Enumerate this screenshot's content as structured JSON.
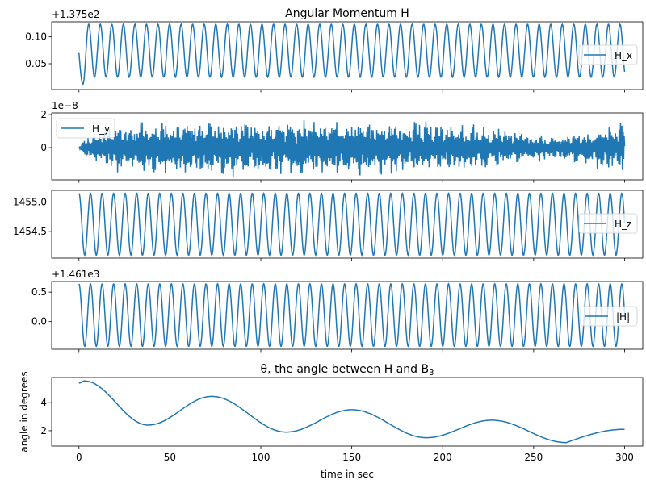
{
  "chart_data": [
    {
      "type": "line",
      "title": "Angular Momentum H",
      "offset_label": "+1.375e2",
      "legend": "H_x",
      "legend_placement": "center-right",
      "yticks": [
        0.05,
        0.1
      ],
      "ytick_labels": [
        "0.05",
        "0.10"
      ],
      "ylim": [
        0.002,
        0.128
      ],
      "xlim": [
        -15,
        310
      ],
      "series": {
        "start": 0.07,
        "first_min": 0.012,
        "min": 0.025,
        "max": 0.1235,
        "period_s": 6.35,
        "t_end": 300
      }
    },
    {
      "type": "line",
      "offset_label": "1e−8",
      "legend": "H_y",
      "legend_placement": "upper-left",
      "yticks": [
        0,
        2
      ],
      "ytick_labels": [
        "0",
        "2"
      ],
      "ylim": [
        -1.95,
        2.1
      ],
      "xlim": [
        -15,
        310
      ],
      "series": {
        "envelope_t": [
          0,
          5,
          20,
          60,
          100,
          140,
          180,
          200,
          230,
          260,
          300
        ],
        "envelope_amp": [
          0.05,
          0.6,
          1.2,
          1.4,
          1.4,
          1.4,
          1.4,
          1.2,
          1.0,
          0.6,
          1.3
        ],
        "t_end": 300
      }
    },
    {
      "type": "line",
      "legend": "H_z",
      "legend_placement": "center-right",
      "yticks": [
        1454.5,
        1455.0
      ],
      "ytick_labels": [
        "1454.5",
        "1455.0"
      ],
      "ylim": [
        1454.05,
        1455.2
      ],
      "xlim": [
        -15,
        310
      ],
      "series": {
        "start": 1455.15,
        "min": 1454.1,
        "max": 1455.15,
        "period_s": 6.35,
        "t_end": 300
      }
    },
    {
      "type": "line",
      "offset_label": "+1.461e3",
      "legend": "|H|",
      "legend_placement": "center-right",
      "yticks": [
        0.0,
        0.5
      ],
      "ytick_labels": [
        "0.0",
        "0.5"
      ],
      "ylim": [
        -0.47,
        0.68
      ],
      "xlim": [
        -15,
        310
      ],
      "series": {
        "start": 0.64,
        "min": -0.42,
        "max": 0.64,
        "period_s": 6.35,
        "t_end": 300
      }
    },
    {
      "type": "line",
      "title": "θ, the angle between H and B",
      "title_sub": "3",
      "xlabel": "time in sec",
      "ylabel": "angle in degrees",
      "yticks": [
        2,
        4
      ],
      "ytick_labels": [
        "2",
        "4"
      ],
      "ylim": [
        0.9,
        5.8
      ],
      "xlim": [
        -15,
        310
      ],
      "xticks": [
        0,
        50,
        100,
        150,
        200,
        250,
        300
      ],
      "xtick_labels": [
        "0",
        "50",
        "100",
        "150",
        "200",
        "250",
        "300"
      ],
      "series": {
        "t": [
          0,
          3,
          38,
          73,
          114,
          150,
          191,
          227,
          268,
          300
        ],
        "theta": [
          5.4,
          5.55,
          2.4,
          4.45,
          1.9,
          3.5,
          1.5,
          2.75,
          1.15,
          2.1
        ]
      }
    }
  ],
  "colors": {
    "line": "#1f77b4",
    "axes": "#000000",
    "legend_border": "#cccccc"
  }
}
